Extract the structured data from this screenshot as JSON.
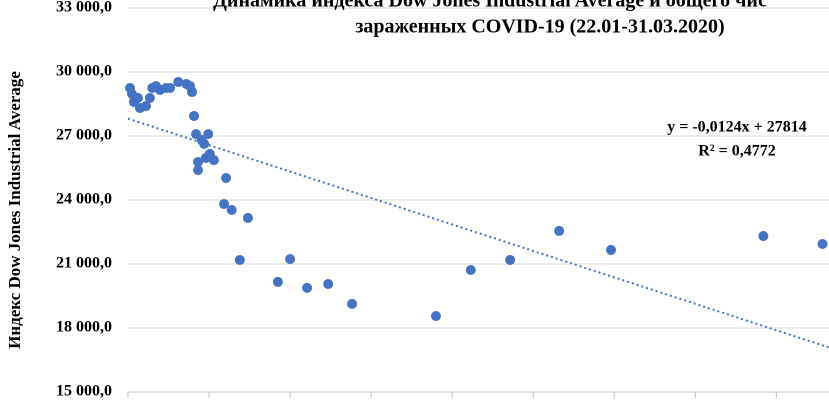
{
  "chart_data": {
    "type": "scatter",
    "title_lines": [
      "Динамика индекса Dow Jones Industrial Average и общего чис",
      "зараженных COVID-19 (22.01-31.03.2020)"
    ],
    "y_label": "Индекс Dow Jones Industrial Average",
    "color": "#4472c4",
    "x": [
      2500,
      5000,
      7400,
      12300,
      14800,
      22200,
      27000,
      30000,
      34500,
      39500,
      47000,
      52000,
      62000,
      72000,
      76500,
      79000,
      81500,
      84000,
      86400,
      86400,
      91000,
      94000,
      99000,
      96000,
      101000,
      106000,
      121000,
      118500,
      128000,
      138000,
      148000,
      185000,
      200000,
      221000,
      247000,
      276500,
      380000,
      423000,
      471500,
      532000,
      596000,
      784000,
      857000
    ],
    "values": [
      29250,
      28970,
      28590,
      28780,
      28310,
      28400,
      28780,
      29250,
      29340,
      29160,
      29250,
      29250,
      29530,
      29440,
      29340,
      29060,
      27940,
      27090,
      25400,
      25780,
      26810,
      26630,
      27090,
      25970,
      26160,
      25870,
      25030,
      23810,
      23530,
      21190,
      23160,
      20160,
      21230,
      19880,
      20060,
      19130,
      18560,
      20720,
      21190,
      22550,
      21660,
      22310,
      21940
    ],
    "xlim": [
      0,
      865000
    ],
    "xticks": [
      0,
      100000,
      200000,
      300000,
      400000,
      500000,
      600000,
      700000,
      800000
    ],
    "ylim": [
      15000,
      33000
    ],
    "yticks": [
      {
        "value": 15000,
        "label": "15 000,0"
      },
      {
        "value": 18000,
        "label": "18 000,0"
      },
      {
        "value": 21000,
        "label": "21 000,0"
      },
      {
        "value": 24000,
        "label": "24 000,0"
      },
      {
        "value": 27000,
        "label": "27 000,0"
      },
      {
        "value": 30000,
        "label": "30 000,0"
      },
      {
        "value": 33000,
        "label": "33 000,0"
      }
    ],
    "grid": true,
    "trendline": {
      "equation": "y = -0,0124x + 27814",
      "r2_text": "R² = 0,4772",
      "slope": -0.0124,
      "intercept": 27814
    }
  }
}
